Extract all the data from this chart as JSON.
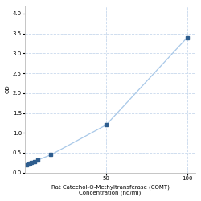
{
  "x_values": [
    1,
    2,
    3,
    4,
    6,
    8,
    16,
    50,
    100
  ],
  "y_values": [
    0.2,
    0.22,
    0.24,
    0.25,
    0.28,
    0.32,
    0.45,
    1.2,
    3.4
  ],
  "xlabel_line1": "50",
  "xlabel_line2": "Rat Catechol-O-Methyltransferase (COMT)",
  "xlabel_line3": "Concentration (ng/ml)",
  "ylabel": "OD",
  "xlim": [
    0,
    105
  ],
  "ylim": [
    0,
    4.2
  ],
  "yticks": [
    0,
    0.5,
    1.0,
    1.5,
    2.0,
    2.5,
    3.0,
    3.5,
    4.0
  ],
  "xticks": [
    50
  ],
  "marker_color": "#2e5d8e",
  "line_color": "#a8c8e8",
  "marker_size": 3.5,
  "background_color": "#ffffff",
  "grid_color": "#c8d8ec",
  "label_fontsize": 5,
  "tick_fontsize": 5,
  "ylabel_fontsize": 5
}
